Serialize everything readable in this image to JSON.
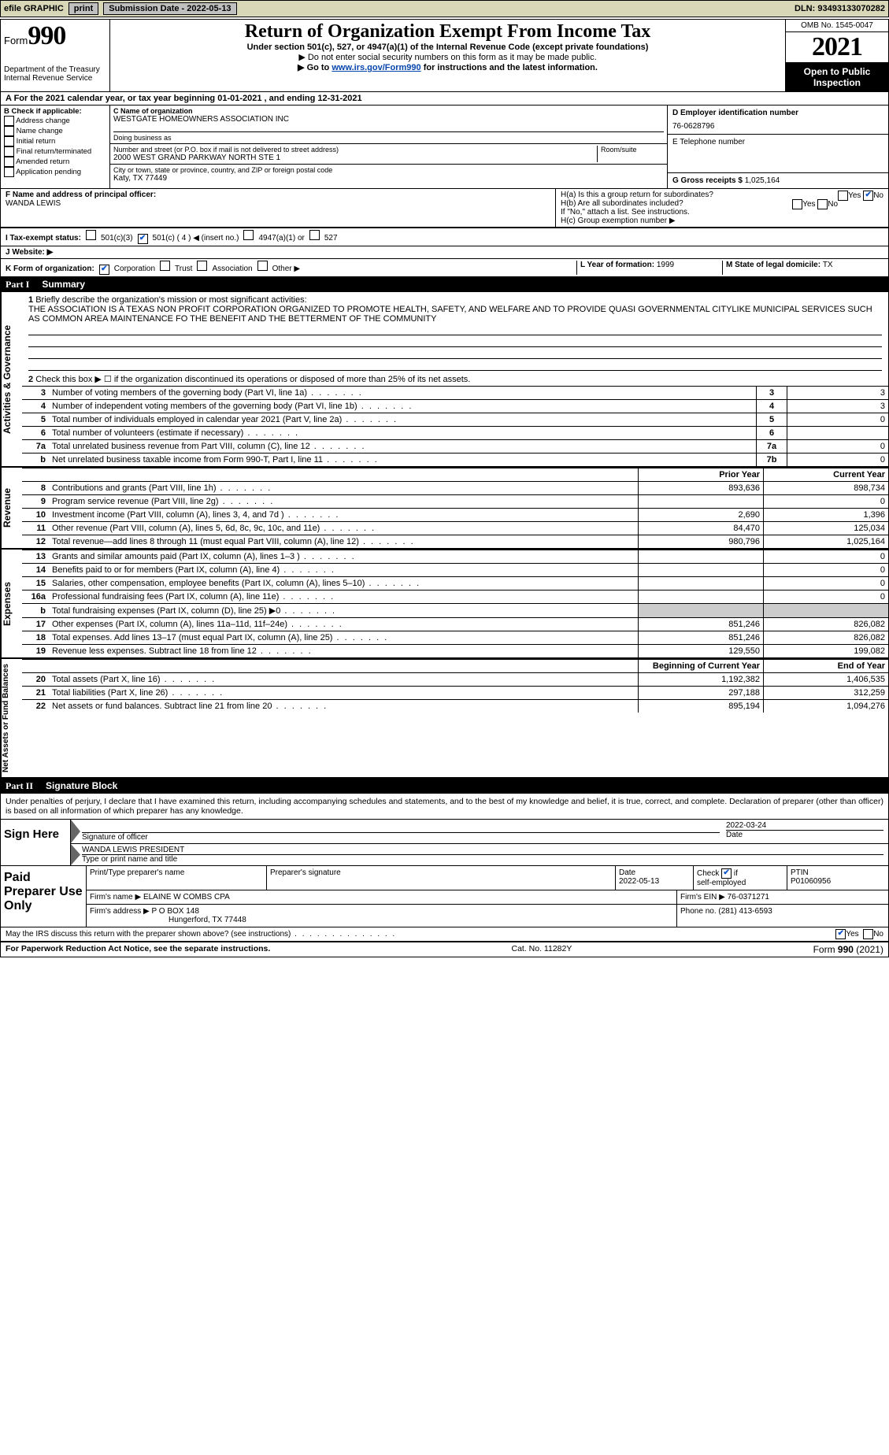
{
  "topbar": {
    "efile": "efile GRAPHIC",
    "print": "print",
    "sub_lbl": "Submission Date - ",
    "sub_date": "2022-05-13",
    "dln_lbl": "DLN: ",
    "dln": "93493133070282"
  },
  "hdr": {
    "form_word": "Form",
    "form_no": "990",
    "dept": "Department of the Treasury",
    "irs": "Internal Revenue Service",
    "title": "Return of Organization Exempt From Income Tax",
    "sub1": "Under section 501(c), 527, or 4947(a)(1) of the Internal Revenue Code (except private foundations)",
    "sub2": "▶ Do not enter social security numbers on this form as it may be made public.",
    "sub3_pre": "▶ Go to ",
    "sub3_link": "www.irs.gov/Form990",
    "sub3_post": " for instructions and the latest information.",
    "omb": "OMB No. 1545-0047",
    "year": "2021",
    "otp": "Open to Public Inspection"
  },
  "cal": {
    "a_pre": "A For the 2021 calendar year, or tax year beginning ",
    "begin": "01-01-2021",
    "mid": "   , and ending ",
    "end": "12-31-2021"
  },
  "B": {
    "hdr": "B Check if applicable:",
    "items": [
      "Address change",
      "Name change",
      "Initial return",
      "Final return/terminated",
      "Amended return",
      "Application pending"
    ]
  },
  "C": {
    "name_lbl": "C Name of organization",
    "name": "WESTGATE HOMEOWNERS ASSOCIATION INC",
    "dba_lbl": "Doing business as",
    "dba": "",
    "street_lbl": "Number and street (or P.O. box if mail is not delivered to street address)",
    "room_lbl": "Room/suite",
    "street": "2000 WEST GRAND PARKWAY NORTH STE 1",
    "city_lbl": "City or town, state or province, country, and ZIP or foreign postal code",
    "city": "Katy, TX  77449"
  },
  "D": {
    "ein_lbl": "D Employer identification number",
    "ein": "76-0628796",
    "tel_lbl": "E Telephone number",
    "tel": "",
    "g_lbl": "G Gross receipts $ ",
    "g_val": "1,025,164"
  },
  "F": {
    "lbl": "F  Name and address of principal officer:",
    "name": "WANDA LEWIS"
  },
  "H": {
    "a": "H(a)  Is this a group return for subordinates?",
    "b": "H(b)  Are all subordinates included?",
    "b_note": "If \"No,\" attach a list. See instructions.",
    "c": "H(c)  Group exemption number ▶",
    "yes": "Yes",
    "no": "No"
  },
  "I": {
    "lbl": "I    Tax-exempt status:",
    "o1": "501(c)(3)",
    "o2": "501(c) ( 4 ) ◀ (insert no.)",
    "o3": "4947(a)(1) or",
    "o4": "527"
  },
  "J": {
    "lbl": "J   Website: ▶"
  },
  "K": {
    "lbl": "K Form of organization:",
    "o1": "Corporation",
    "o2": "Trust",
    "o3": "Association",
    "o4": "Other ▶"
  },
  "L": {
    "lbl": "L Year of formation: ",
    "val": "1999"
  },
  "M": {
    "lbl": "M State of legal domicile: ",
    "val": "TX"
  },
  "part1": {
    "no": "Part I",
    "title": "Summary"
  },
  "side": {
    "activities": "Activities & Governance",
    "revenue": "Revenue",
    "expenses": "Expenses",
    "netassets": "Net Assets or Fund Balances"
  },
  "q1": {
    "n": "1",
    "text": "Briefly describe the organization's mission or most significant activities:",
    "body": "THE ASSOCIATION IS A TEXAS NON PROFIT CORPORATION ORGANIZED TO PROMOTE HEALTH, SAFETY, AND WELFARE AND TO PROVIDE QUASI GOVERNMENTAL CITYLIKE MUNICIPAL SERVICES SUCH AS COMMON AREA MAINTENANCE FO THE BENEFIT AND THE BETTERMENT OF THE COMMUNITY"
  },
  "q2": {
    "n": "2",
    "text": "Check this box ▶ ☐ if the organization discontinued its operations or disposed of more than 25% of its net assets."
  },
  "rows_small": [
    {
      "n": "3",
      "d": "Number of voting members of the governing body (Part VI, line 1a)",
      "box": "3",
      "v": "3"
    },
    {
      "n": "4",
      "d": "Number of independent voting members of the governing body (Part VI, line 1b)",
      "box": "4",
      "v": "3"
    },
    {
      "n": "5",
      "d": "Total number of individuals employed in calendar year 2021 (Part V, line 2a)",
      "box": "5",
      "v": "0"
    },
    {
      "n": "6",
      "d": "Total number of volunteers (estimate if necessary)",
      "box": "6",
      "v": ""
    },
    {
      "n": "7a",
      "d": "Total unrelated business revenue from Part VIII, column (C), line 12",
      "box": "7a",
      "v": "0"
    },
    {
      "n": "b",
      "d": "Net unrelated business taxable income from Form 990-T, Part I, line 11",
      "box": "7b",
      "v": "0"
    }
  ],
  "col_hdr": {
    "prior": "Prior Year",
    "current": "Current Year",
    "begin": "Beginning of Current Year",
    "end": "End of Year"
  },
  "rows_rev": [
    {
      "n": "8",
      "d": "Contributions and grants (Part VIII, line 1h)",
      "p": "893,636",
      "c": "898,734"
    },
    {
      "n": "9",
      "d": "Program service revenue (Part VIII, line 2g)",
      "p": "",
      "c": "0"
    },
    {
      "n": "10",
      "d": "Investment income (Part VIII, column (A), lines 3, 4, and 7d )",
      "p": "2,690",
      "c": "1,396"
    },
    {
      "n": "11",
      "d": "Other revenue (Part VIII, column (A), lines 5, 6d, 8c, 9c, 10c, and 11e)",
      "p": "84,470",
      "c": "125,034"
    },
    {
      "n": "12",
      "d": "Total revenue—add lines 8 through 11 (must equal Part VIII, column (A), line 12)",
      "p": "980,796",
      "c": "1,025,164"
    }
  ],
  "rows_exp": [
    {
      "n": "13",
      "d": "Grants and similar amounts paid (Part IX, column (A), lines 1–3 )",
      "p": "",
      "c": "0"
    },
    {
      "n": "14",
      "d": "Benefits paid to or for members (Part IX, column (A), line 4)",
      "p": "",
      "c": "0"
    },
    {
      "n": "15",
      "d": "Salaries, other compensation, employee benefits (Part IX, column (A), lines 5–10)",
      "p": "",
      "c": "0"
    },
    {
      "n": "16a",
      "d": "Professional fundraising fees (Part IX, column (A), line 11e)",
      "p": "",
      "c": "0"
    },
    {
      "n": "b",
      "d": "Total fundraising expenses (Part IX, column (D), line 25) ▶0",
      "p": "__shade__",
      "c": "__shade__"
    },
    {
      "n": "17",
      "d": "Other expenses (Part IX, column (A), lines 11a–11d, 11f–24e)",
      "p": "851,246",
      "c": "826,082"
    },
    {
      "n": "18",
      "d": "Total expenses. Add lines 13–17 (must equal Part IX, column (A), line 25)",
      "p": "851,246",
      "c": "826,082"
    },
    {
      "n": "19",
      "d": "Revenue less expenses. Subtract line 18 from line 12",
      "p": "129,550",
      "c": "199,082"
    }
  ],
  "rows_net": [
    {
      "n": "20",
      "d": "Total assets (Part X, line 16)",
      "p": "1,192,382",
      "c": "1,406,535"
    },
    {
      "n": "21",
      "d": "Total liabilities (Part X, line 26)",
      "p": "297,188",
      "c": "312,259"
    },
    {
      "n": "22",
      "d": "Net assets or fund balances. Subtract line 21 from line 20",
      "p": "895,194",
      "c": "1,094,276"
    }
  ],
  "part2": {
    "no": "Part II",
    "title": "Signature Block"
  },
  "sig": {
    "decl": "Under penalties of perjury, I declare that I have examined this return, including accompanying schedules and statements, and to the best of my knowledge and belief, it is true, correct, and complete. Declaration of preparer (other than officer) is based on all information of which preparer has any knowledge.",
    "sign_here": "Sign Here",
    "sig_officer": "Signature of officer",
    "date_lbl": "Date",
    "date": "2022-03-24",
    "name_title": "WANDA LEWIS PRESIDENT",
    "name_title_lbl": "Type or print name and title"
  },
  "paid": {
    "hdr": "Paid Preparer Use Only",
    "p_name_lbl": "Print/Type preparer's name",
    "p_name": "",
    "p_sig_lbl": "Preparer's signature",
    "p_date_lbl": "Date",
    "p_date": "2022-05-13",
    "check_lbl": "Check ☑ if self-employed",
    "ptin_lbl": "PTIN",
    "ptin": "P01060956",
    "firm_name_lbl": "Firm's name    ▶",
    "firm_name": "ELAINE W COMBS CPA",
    "firm_ein_lbl": "Firm's EIN ▶ ",
    "firm_ein": "76-0371271",
    "firm_addr_lbl": "Firm's address ▶",
    "firm_addr1": "P O BOX 148",
    "firm_addr2": "Hungerford, TX  77448",
    "phone_lbl": "Phone no. ",
    "phone": "(281) 413-6593"
  },
  "discuss": {
    "q": "May the IRS discuss this return with the preparer shown above? (see instructions)",
    "yes": "Yes",
    "no": "No"
  },
  "footer": {
    "left": "For Paperwork Reduction Act Notice, see the separate instructions.",
    "mid": "Cat. No. 11282Y",
    "right_pre": "Form ",
    "right_form": "990",
    "right_post": " (2021)"
  }
}
